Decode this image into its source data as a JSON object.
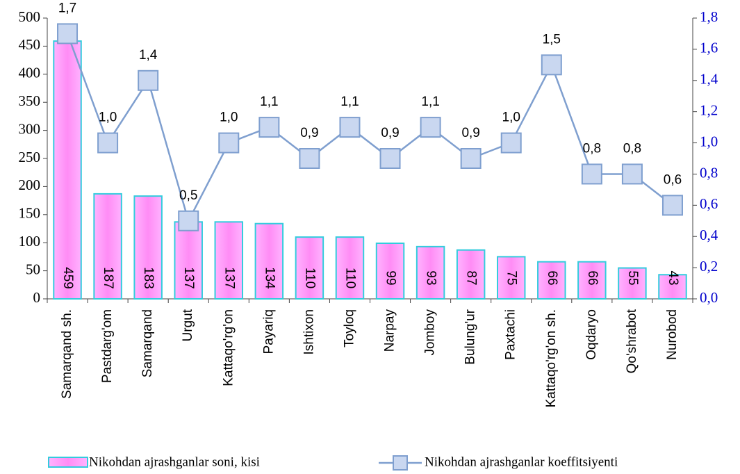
{
  "chart_data": {
    "type": "bar",
    "categories": [
      "Samarqand sh.",
      "Pastdarg'om",
      "Samarqand",
      "Urgut",
      "Kattaqo'rg'on",
      "Payariq",
      "Ishtixon",
      "Toyloq",
      "Narpay",
      "Jomboy",
      "Bulung'ur",
      "Paxtachi",
      "Kattaqo'rg'on sh.",
      "Oqdaryo",
      "Qo'shrabot",
      "Nurobod"
    ],
    "series": [
      {
        "name": "Nikohdan ajrashganlar soni, kisi",
        "type": "bar",
        "color": "#ff99ff",
        "values": [
          459,
          187,
          183,
          137,
          137,
          134,
          110,
          110,
          99,
          93,
          87,
          75,
          66,
          66,
          55,
          43
        ]
      },
      {
        "name": "Nikohdan ajrashganlar koeffitsiyenti",
        "type": "line",
        "axis": "y2",
        "color": "#7f9fcf",
        "values": [
          1.7,
          1.0,
          1.4,
          0.5,
          1.0,
          1.1,
          0.9,
          1.1,
          0.9,
          1.1,
          0.9,
          1.0,
          1.5,
          0.8,
          0.8,
          0.6
        ],
        "value_labels": [
          "1,7",
          "1,0",
          "1,4",
          "0,5",
          "1,0",
          "1,1",
          "0,9",
          "1,1",
          "0,9",
          "1,1",
          "0,9",
          "1,0",
          "1,5",
          "0,8",
          "0,8",
          "0,6"
        ]
      }
    ],
    "ylim": [
      0,
      500
    ],
    "yticks": [
      0,
      50,
      100,
      150,
      200,
      250,
      300,
      350,
      400,
      450,
      500
    ],
    "y2lim": [
      0,
      1.8
    ],
    "y2ticks": [
      {
        "value": 0,
        "label": "0,0"
      },
      {
        "value": 0.2,
        "label": "0,2"
      },
      {
        "value": 0.4,
        "label": "0,4"
      },
      {
        "value": 0.6,
        "label": "0,6"
      },
      {
        "value": 0.8,
        "label": "0,8"
      },
      {
        "value": 1.0,
        "label": "1,0"
      },
      {
        "value": 1.2,
        "label": "1,2"
      },
      {
        "value": 1.4,
        "label": "1,4"
      },
      {
        "value": 1.6,
        "label": "1,6"
      },
      {
        "value": 1.8,
        "label": "1,8"
      }
    ],
    "legend": "bottom"
  }
}
